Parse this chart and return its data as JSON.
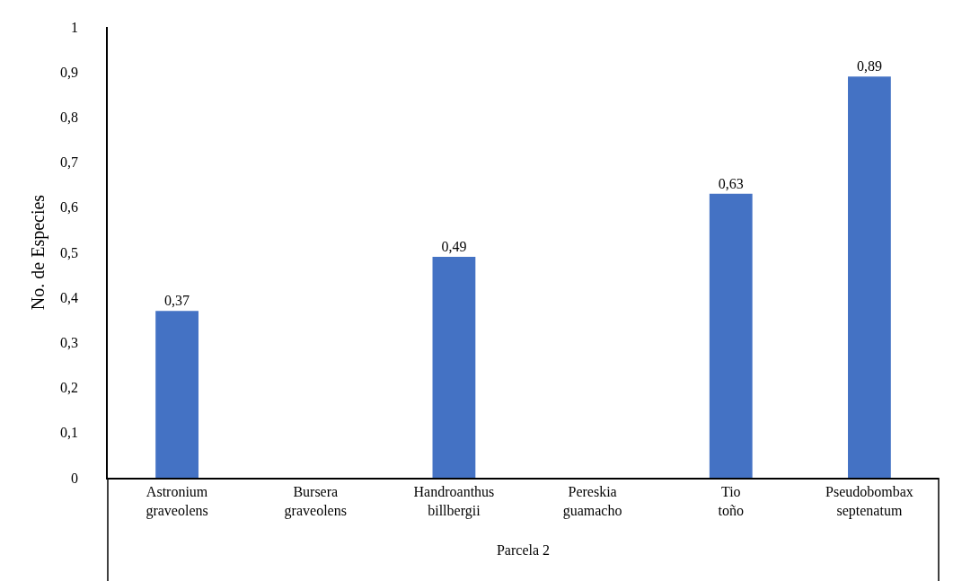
{
  "chart_data": {
    "type": "bar",
    "ylabel": "No. de Especies",
    "xlabel": "Parcela 2",
    "categories": [
      "Astronium graveolens",
      "Bursera graveolens",
      "Handroanthus billbergii",
      "Pereskia guamacho",
      "Tio toño",
      "Pseudobombax septenatum"
    ],
    "values": [
      0.37,
      null,
      0.49,
      null,
      0.63,
      0.89
    ],
    "value_labels": [
      "0,37",
      null,
      "0,49",
      null,
      "0,63",
      "0,89"
    ],
    "color": "#4472c4",
    "ylim": [
      0,
      1
    ],
    "yticks": [
      0,
      {
        "value": 0.1,
        "label": "0,1"
      },
      {
        "value": 0.2,
        "label": "0,2"
      },
      {
        "value": 0.3,
        "label": "0,3"
      },
      {
        "value": 0.4,
        "label": "0,4"
      },
      {
        "value": 0.5,
        "label": "0,5"
      },
      {
        "value": 0.6,
        "label": "0,6"
      },
      {
        "value": 0.7,
        "label": "0,7"
      },
      {
        "value": 0.8,
        "label": "0,8"
      },
      {
        "value": 0.9,
        "label": "0,9"
      },
      1
    ],
    "grid": false,
    "legend": false
  }
}
